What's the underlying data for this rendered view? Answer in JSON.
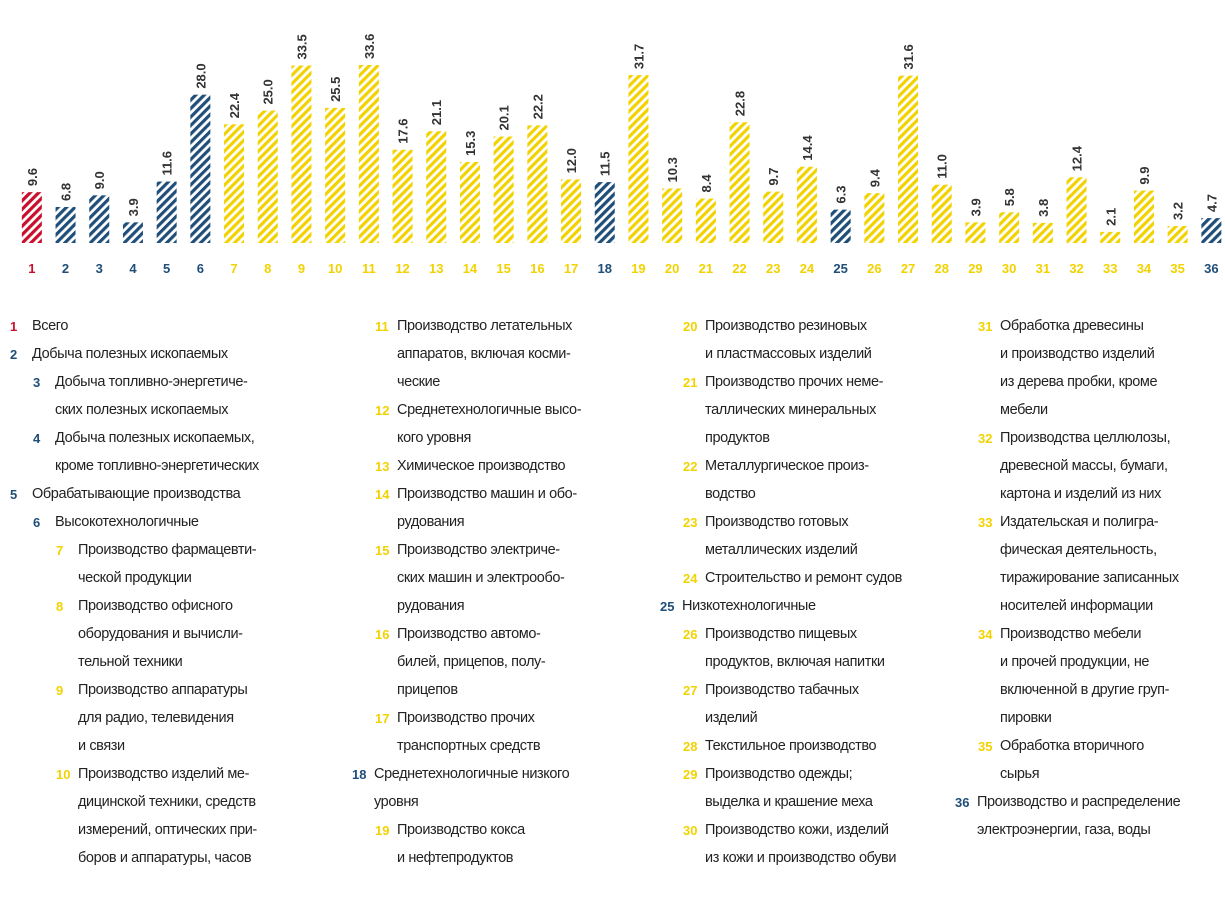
{
  "chart_data": {
    "type": "bar",
    "categories": [
      "1",
      "2",
      "3",
      "4",
      "5",
      "6",
      "7",
      "8",
      "9",
      "10",
      "11",
      "12",
      "13",
      "14",
      "15",
      "16",
      "17",
      "18",
      "19",
      "20",
      "21",
      "22",
      "23",
      "24",
      "25",
      "26",
      "27",
      "28",
      "29",
      "30",
      "31",
      "32",
      "33",
      "34",
      "35",
      "36"
    ],
    "values": [
      9.6,
      6.8,
      9.0,
      3.9,
      11.6,
      28.0,
      22.4,
      25.0,
      33.5,
      25.5,
      33.6,
      17.6,
      21.1,
      15.3,
      20.1,
      22.2,
      12.0,
      11.5,
      31.7,
      10.3,
      8.4,
      22.8,
      9.7,
      14.4,
      6.3,
      9.4,
      31.6,
      11.0,
      3.9,
      5.8,
      3.8,
      12.4,
      2.1,
      9.9,
      3.2,
      4.7
    ],
    "value_labels": [
      "9.6",
      "6.8",
      "9.0",
      "3.9",
      "11.6",
      "28.0",
      "22.4",
      "25.0",
      "33.5",
      "25.5",
      "33.6",
      "17.6",
      "21.1",
      "15.3",
      "20.1",
      "22.2",
      "12.0",
      "11.5",
      "31.7",
      "10.3",
      "8.4",
      "22.8",
      "9.7",
      "14.4",
      "6.3",
      "9.4",
      "31.6",
      "11.0",
      "3.9",
      "5.8",
      "3.8",
      "12.4",
      "2.1",
      "9.9",
      "3.2",
      "4.7"
    ],
    "colors": [
      "#c8102e",
      "#1f4e79",
      "#1f4e79",
      "#1f4e79",
      "#1f4e79",
      "#1f4e79",
      "#f2d200",
      "#f2d200",
      "#f2d200",
      "#f2d200",
      "#f2d200",
      "#f2d200",
      "#f2d200",
      "#f2d200",
      "#f2d200",
      "#f2d200",
      "#f2d200",
      "#1f4e79",
      "#f2d200",
      "#f2d200",
      "#f2d200",
      "#f2d200",
      "#f2d200",
      "#f2d200",
      "#1f4e79",
      "#f2d200",
      "#f2d200",
      "#f2d200",
      "#f2d200",
      "#f2d200",
      "#f2d200",
      "#f2d200",
      "#f2d200",
      "#f2d200",
      "#f2d200",
      "#1f4e79"
    ],
    "descriptions": [
      "Всего",
      "Добыча полезных ископаемых",
      "Добыча топливно-энергетиче-\nских полезных ископаемых",
      "Добыча полезных ископаемых,\nкроме топливно-энергетических",
      "Обрабатывающие производства",
      "Высокотехнологичные",
      "Производство фармацевти-\nческой продукции",
      "Производство офисного\nоборудования и вычисли-\nтельной техники",
      "Производство аппаратуры\nдля радио, телевидения\nи связи",
      "Производство изделий ме-\nдицинской техники, средств\nизмерений, оптических при-\nборов и аппаратуры, часов",
      "Производство летательных\nаппаратов, включая косми-\nческие",
      "Среднетехнологичные высо-\nкого уровня",
      "Химическое производство",
      "Производство машин и обо-\nрудования",
      "Производство электриче-\nских машин и электрообо-\nрудования",
      "Производство автомо-\nбилей, прицепов, полу-\nприцепов",
      "Производство прочих\nтранспортных средств",
      "Среднетехнологичные низкого\nуровня",
      "Производство кокса\nи нефтепродуктов",
      "Производство резиновых\nи пластмассовых изделий",
      "Производство прочих неме-\nталлических минеральных\nпродуктов",
      "Металлургическое произ-\nводство",
      "Производство готовых\nметаллических изделий",
      "Строительство и ремонт судов",
      "Низкотехнологичные",
      "Производство пищевых\nпродуктов, включая напитки",
      "Производство табачных\nизделий",
      "Текстильное производство",
      "Производство одежды;\nвыделка и крашение меха",
      "Производство кожи, изделий\nиз кожи и производство обуви",
      "Обработка древесины\nи производство изделий\nиз дерева пробки, кроме\nмебели",
      "Производства целлюлозы,\nдревесной массы, бумаги,\nкартона и изделий из них",
      "Издательская и полигра-\nфическая деятельность,\nтиражирование записанных\nносителей информации",
      "Производство мебели\nи прочей продукции, не\nвключенной в другие груп-\nпировки",
      "Обработка вторичного\nсырья",
      "Производство и распределение\nэлектроэнергии, газа, воды"
    ]
  }
}
